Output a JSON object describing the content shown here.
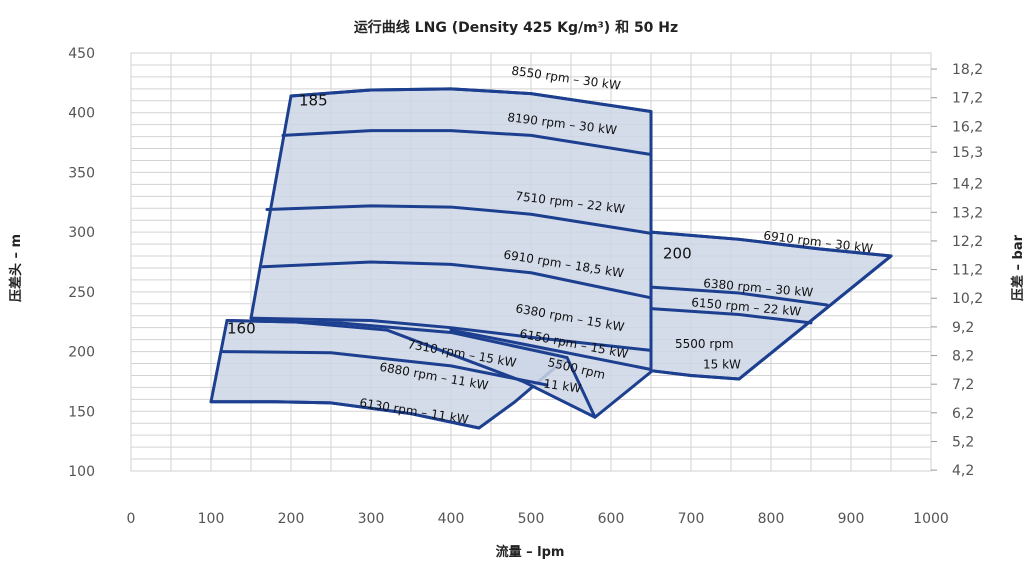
{
  "chart_data": {
    "type": "line",
    "title": "运行曲线 LNG (Density 425 Kg/m³) 和 50 Hz",
    "xlabel": "流量 – lpm",
    "ylabel": "压差头 – m",
    "y2label": "压差 – bar",
    "xlim": [
      0,
      1000
    ],
    "ylim": [
      100,
      450
    ],
    "x_ticks": [
      "0",
      "100",
      "200",
      "300",
      "400",
      "500",
      "600",
      "700",
      "800",
      "900",
      "1000"
    ],
    "y_ticks": [
      "100",
      "150",
      "200",
      "250",
      "300",
      "350",
      "400",
      "450"
    ],
    "y2_ticks": [
      "4,2",
      "5,2",
      "6,2",
      "7,2",
      "8,2",
      "9,2",
      "10,2",
      "11,2",
      "12,2",
      "13,2",
      "14,2",
      "15,3",
      "16,2",
      "17,2",
      "18,2"
    ],
    "grid": true,
    "regions": [
      {
        "name": "160",
        "label_at": [
          120,
          215
        ],
        "outline": [
          [
            100,
            158
          ],
          [
            120,
            226
          ],
          [
            260,
            224
          ],
          [
            400,
            216
          ],
          [
            520,
            200
          ],
          [
            545,
            195
          ],
          [
            480,
            158
          ],
          [
            435,
            136
          ],
          [
            350,
            148
          ],
          [
            250,
            157
          ],
          [
            180,
            158
          ],
          [
            100,
            158
          ]
        ]
      },
      {
        "name": "185",
        "label_at": [
          210,
          406
        ],
        "outline": [
          [
            150,
            228
          ],
          [
            200,
            414
          ],
          [
            300,
            419
          ],
          [
            400,
            420
          ],
          [
            500,
            416
          ],
          [
            650,
            401
          ],
          [
            650,
            183
          ],
          [
            580,
            145
          ],
          [
            490,
            175
          ],
          [
            320,
            218
          ],
          [
            150,
            228
          ]
        ]
      },
      {
        "name": "200",
        "label_at": [
          665,
          278
        ],
        "outline": [
          [
            650,
            300
          ],
          [
            760,
            294
          ],
          [
            860,
            286
          ],
          [
            950,
            280
          ],
          [
            760,
            177
          ],
          [
            700,
            180
          ],
          [
            650,
            184
          ],
          [
            650,
            300
          ]
        ]
      }
    ],
    "series": [
      {
        "name": "8550 rpm – 30 kW",
        "points": [
          [
            200,
            414
          ],
          [
            300,
            419
          ],
          [
            400,
            420
          ],
          [
            500,
            416
          ],
          [
            650,
            401
          ]
        ],
        "label_at": [
          475,
          432
        ],
        "label_angle": 8
      },
      {
        "name": "8190 rpm – 30 kW",
        "points": [
          [
            190,
            381
          ],
          [
            300,
            385
          ],
          [
            400,
            385
          ],
          [
            500,
            381
          ],
          [
            650,
            365
          ]
        ],
        "label_at": [
          470,
          393
        ],
        "label_angle": 7
      },
      {
        "name": "7510 rpm – 22 kW",
        "points": [
          [
            170,
            319
          ],
          [
            300,
            322
          ],
          [
            400,
            321
          ],
          [
            500,
            315
          ],
          [
            650,
            299
          ]
        ],
        "label_at": [
          480,
          327
        ],
        "label_angle": 7
      },
      {
        "name": "6910 rpm – 18,5 kW",
        "points": [
          [
            165,
            271
          ],
          [
            300,
            275
          ],
          [
            400,
            273
          ],
          [
            500,
            266
          ],
          [
            650,
            245
          ]
        ],
        "label_at": [
          465,
          278
        ],
        "label_angle": 9
      },
      {
        "name": "6380 rpm – 15 kW",
        "points": [
          [
            150,
            228
          ],
          [
            300,
            226
          ],
          [
            400,
            220
          ],
          [
            500,
            212
          ],
          [
            650,
            201
          ]
        ],
        "label_at": [
          480,
          233
        ],
        "label_angle": 10
      },
      {
        "name": "6150 rpm – 15 kW",
        "points": [
          [
            400,
            218
          ],
          [
            500,
            205
          ],
          [
            650,
            185
          ]
        ],
        "label_at": [
          485,
          212
        ],
        "label_angle": 11
      },
      {
        "name": "5500 rpm",
        "points": [
          [
            545,
            195
          ],
          [
            580,
            145
          ]
        ],
        "label_at": [
          520,
          188
        ],
        "label_angle": 13
      },
      {
        "name": "11 kW",
        "points": [],
        "label_at": [
          515,
          170
        ],
        "label_angle": 8
      },
      {
        "name": "7310 rpm – 15 kW",
        "points": [
          [
            120,
            226
          ],
          [
            260,
            224
          ],
          [
            400,
            216
          ],
          [
            545,
            195
          ]
        ],
        "label_at": [
          345,
          203
        ],
        "label_angle": 10
      },
      {
        "name": "6880 rpm – 11 kW",
        "points": [
          [
            115,
            200
          ],
          [
            250,
            199
          ],
          [
            400,
            188
          ],
          [
            520,
            172
          ]
        ],
        "label_at": [
          310,
          184
        ],
        "label_angle": 10
      },
      {
        "name": "6130 rpm – 11 kW",
        "points": [
          [
            100,
            158
          ],
          [
            180,
            158
          ],
          [
            250,
            157
          ],
          [
            350,
            148
          ],
          [
            435,
            136
          ]
        ],
        "label_at": [
          285,
          154
        ],
        "label_angle": 9
      },
      {
        "name": "6910 rpm – 30 kW",
        "points": [
          [
            650,
            300
          ],
          [
            760,
            294
          ],
          [
            860,
            286
          ],
          [
            950,
            280
          ]
        ],
        "label_at": [
          790,
          294
        ],
        "label_angle": 7
      },
      {
        "name": "6380 rpm – 30 kW",
        "points": [
          [
            650,
            254
          ],
          [
            760,
            249
          ],
          [
            870,
            239
          ]
        ],
        "label_at": [
          715,
          254
        ],
        "label_angle": 5
      },
      {
        "name": "6150 rpm – 22 kW",
        "points": [
          [
            650,
            236
          ],
          [
            760,
            231
          ],
          [
            850,
            224
          ]
        ],
        "label_at": [
          700,
          238
        ],
        "label_angle": 5
      },
      {
        "name": "5500 rpm",
        "points": [
          [
            650,
            184
          ],
          [
            700,
            180
          ],
          [
            760,
            177
          ],
          [
            950,
            280
          ]
        ],
        "label_at": [
          680,
          203
        ],
        "label_angle": 0
      },
      {
        "name": "15 kW",
        "points": [],
        "label_at": [
          715,
          186
        ],
        "label_angle": 0
      }
    ]
  }
}
